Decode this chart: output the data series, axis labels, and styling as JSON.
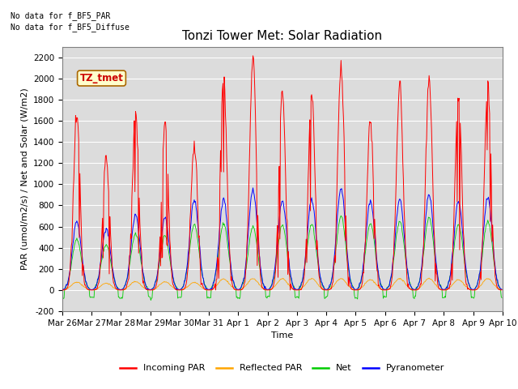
{
  "title": "Tonzi Tower Met: Solar Radiation",
  "xlabel": "Time",
  "ylabel": "PAR (umol/m2/s) / Net and Solar (W/m2)",
  "ylim": [
    -200,
    2300
  ],
  "yticks": [
    -200,
    0,
    200,
    400,
    600,
    800,
    1000,
    1200,
    1400,
    1600,
    1800,
    2000,
    2200
  ],
  "xtick_labels": [
    "Mar 26",
    "Mar 27",
    "Mar 28",
    "Mar 29",
    "Mar 30",
    "Mar 31",
    "Apr 1",
    "Apr 2",
    "Apr 3",
    "Apr 4",
    "Apr 5",
    "Apr 6",
    "Apr 7",
    "Apr 8",
    "Apr 9",
    "Apr 10"
  ],
  "no_data_text1": "No data for f_BF5_PAR",
  "no_data_text2": "No data for f_BF5_Diffuse",
  "legend_label_box": "TZ_tmet",
  "legend_entries": [
    "Incoming PAR",
    "Reflected PAR",
    "Net",
    "Pyranometer"
  ],
  "legend_colors": [
    "#ff0000",
    "#ffa500",
    "#00cc00",
    "#0000ff"
  ],
  "line_colors": {
    "incoming": "#ff0000",
    "reflected": "#ffa500",
    "net": "#00cc00",
    "pyranometer": "#0000ff"
  },
  "plot_bg_color": "#dcdcdc",
  "title_fontsize": 11,
  "axis_fontsize": 8,
  "tick_fontsize": 7.5,
  "num_days": 15,
  "n_points_per_day": 48,
  "incoming_peaks": [
    1650,
    1250,
    1670,
    1600,
    1350,
    2000,
    2200,
    1870,
    1900,
    2150,
    1600,
    1930,
    2000,
    1840,
    1950
  ],
  "reflected_peaks": [
    75,
    65,
    80,
    78,
    72,
    105,
    108,
    105,
    108,
    108,
    98,
    108,
    108,
    98,
    108
  ],
  "pyranometer_peaks": [
    650,
    580,
    710,
    690,
    855,
    860,
    950,
    845,
    855,
    960,
    845,
    860,
    910,
    835,
    880
  ],
  "net_peaks": [
    480,
    430,
    530,
    510,
    620,
    630,
    600,
    615,
    620,
    700,
    630,
    650,
    680,
    620,
    650
  ],
  "net_night": -70
}
